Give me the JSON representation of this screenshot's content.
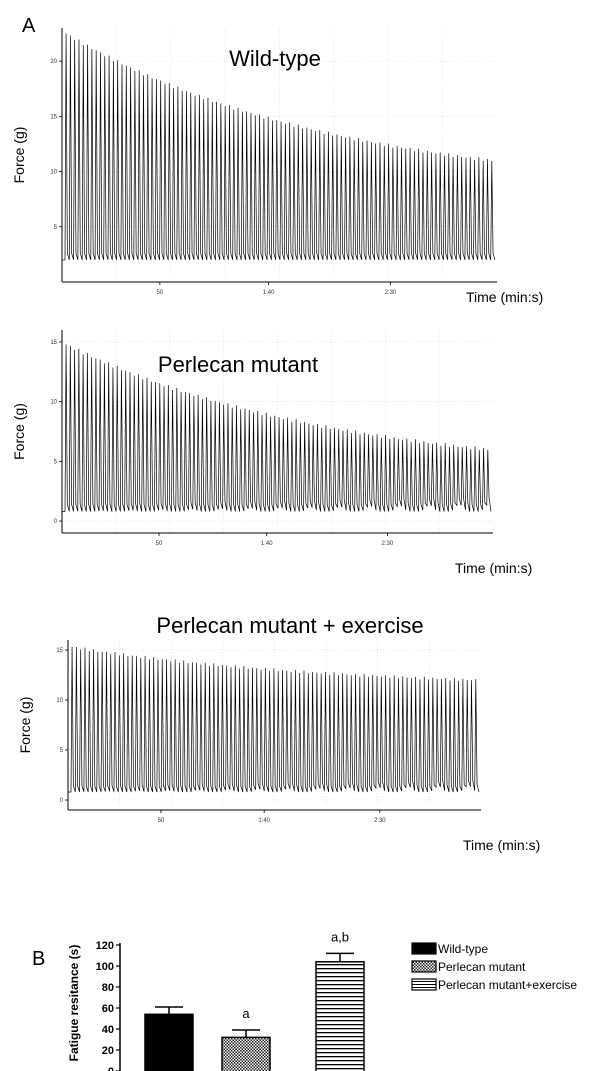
{
  "panels": {
    "a": "A",
    "b": "B"
  },
  "chart_data": [
    {
      "type": "line",
      "title": "Wild-type",
      "xlabel": "Time (min:s)",
      "ylabel": "Force (g)",
      "x_ticks": [
        "50",
        "1:40",
        "2:30"
      ],
      "y_ticks": [
        "5",
        "10",
        "15",
        "20"
      ],
      "ylim": [
        0,
        23
      ],
      "grid": true,
      "baseline": 2,
      "peak_start": 22.5,
      "peak_end": 11,
      "contractions": 100
    },
    {
      "type": "line",
      "title": "Perlecan mutant",
      "xlabel": "Time (min:s)",
      "ylabel": "Force (g)",
      "x_ticks": [
        "50",
        "1:40",
        "2:30"
      ],
      "y_ticks": [
        "0",
        "5",
        "10",
        "15"
      ],
      "ylim": [
        -1,
        16
      ],
      "grid": true,
      "baseline": 0.8,
      "peak_start": 14.8,
      "peak_end": 6,
      "contractions": 100
    },
    {
      "type": "line",
      "title": "Perlecan mutant + exercise",
      "xlabel": "Time (min:s)",
      "ylabel": "Force (g)",
      "x_ticks": [
        "50",
        "1:40",
        "2:30"
      ],
      "y_ticks": [
        "0",
        "5",
        "10",
        "15"
      ],
      "ylim": [
        -1,
        16
      ],
      "grid": true,
      "baseline": 0.8,
      "peak_start": 15.3,
      "peak_end": 12,
      "contractions": 95
    },
    {
      "type": "bar",
      "ylabel": "Fatigue resitance (s)",
      "categories": [
        "Wild-type",
        "Perlecan mutant",
        "Perlecan mutant+exercise"
      ],
      "values": [
        54,
        32,
        104
      ],
      "errors": [
        7,
        7,
        8
      ],
      "significance": [
        "",
        "a",
        "a,b"
      ],
      "y_ticks": [
        "0",
        "20",
        "40",
        "60",
        "80",
        "100",
        "120"
      ],
      "ylim": [
        0,
        120
      ],
      "legend": "right",
      "colors": [
        "#000000",
        "#888888",
        "#ffffff"
      ]
    }
  ]
}
